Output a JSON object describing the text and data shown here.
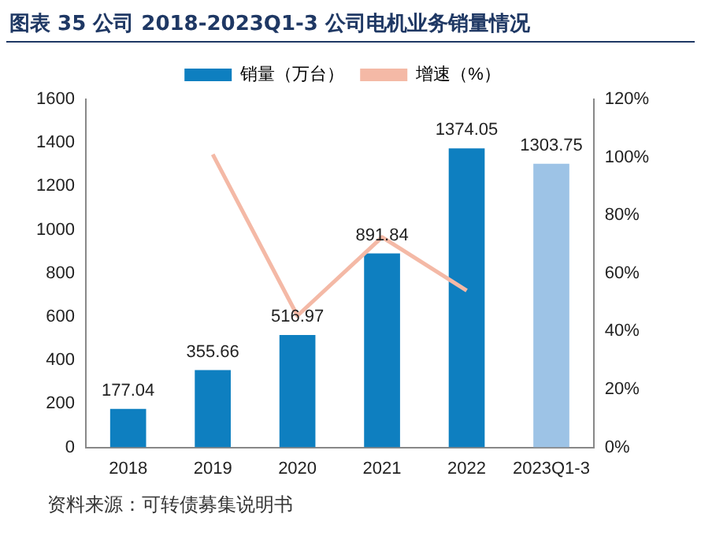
{
  "chart_data": {
    "type": "bar",
    "title": "图表 35 公司 2018-2023Q1-3 公司电机业务销量情况",
    "categories": [
      "2018",
      "2019",
      "2020",
      "2021",
      "2022",
      "2023Q1-3"
    ],
    "series": [
      {
        "name": "销量（万台）",
        "color": "#0e7fc0",
        "colors": [
          "#0e7fc0",
          "#0e7fc0",
          "#0e7fc0",
          "#0e7fc0",
          "#0e7fc0",
          "#9dc3e6"
        ],
        "values": [
          177.04,
          355.66,
          516.97,
          891.84,
          1374.05,
          1303.75
        ],
        "value_labels": [
          "177.04",
          "355.66",
          "516.97",
          "891.84",
          "1374.05",
          "1303.75"
        ]
      },
      {
        "name": "增速（%）",
        "type": "line",
        "axis": "y2",
        "color": "#f4b9a6",
        "values": [
          null,
          101,
          45.4,
          72.5,
          54.1,
          null
        ]
      }
    ],
    "ylim": [
      0,
      1600
    ],
    "yticks": [
      0,
      200,
      400,
      600,
      800,
      1000,
      1200,
      1400,
      1600
    ],
    "y2lim": [
      0,
      120
    ],
    "y2ticks": [
      {
        "value": 0,
        "label": "0%"
      },
      {
        "value": 20,
        "label": "20%"
      },
      {
        "value": 40,
        "label": "40%"
      },
      {
        "value": 60,
        "label": "60%"
      },
      {
        "value": 80,
        "label": "80%"
      },
      {
        "value": 100,
        "label": "100%"
      },
      {
        "value": 120,
        "label": "120%"
      }
    ],
    "grid": false,
    "legend": "top",
    "marker": "none",
    "line_style": "solid",
    "annotations": [
      "资料来源：可转债募集说明书"
    ]
  }
}
